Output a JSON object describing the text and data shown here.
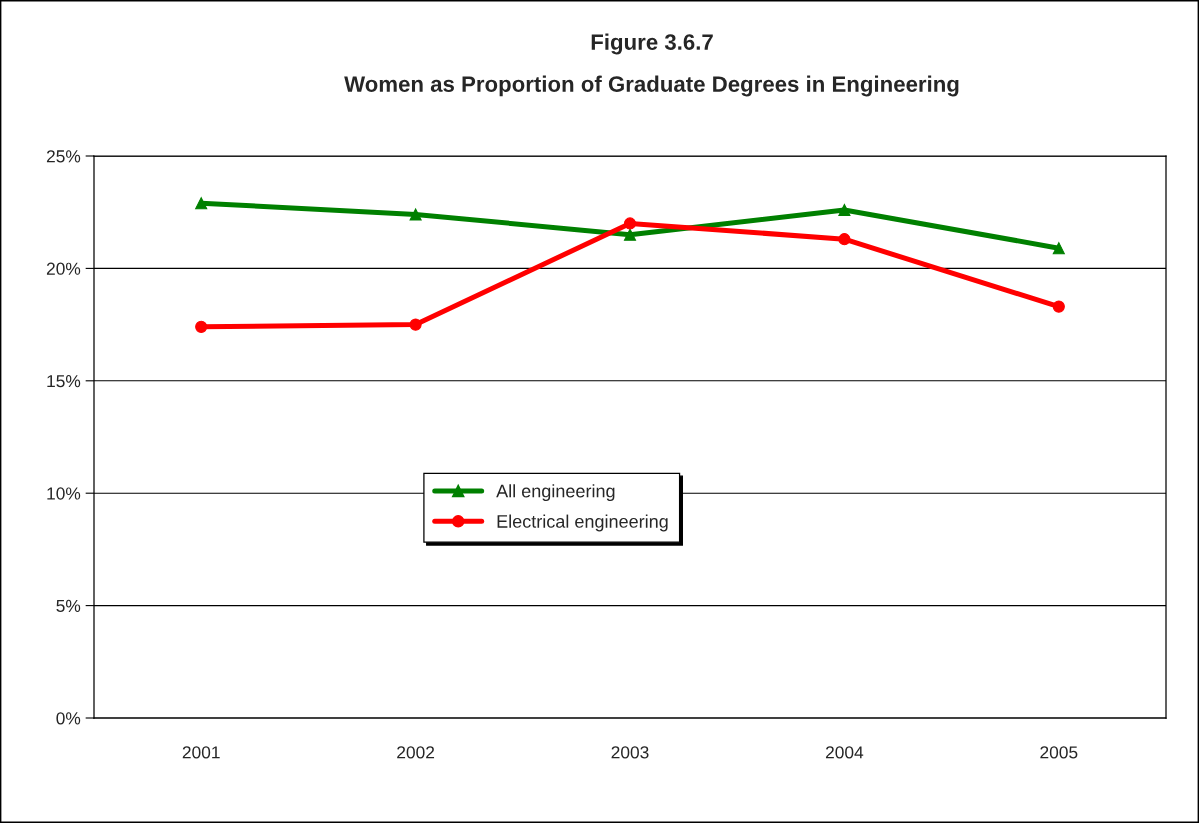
{
  "chart_data": {
    "type": "line",
    "title": "Figure 3.6.7",
    "subtitle": "Women as Proportion of Graduate Degrees in Engineering",
    "categories": [
      "2001",
      "2002",
      "2003",
      "2004",
      "2005"
    ],
    "series": [
      {
        "name": "All engineering",
        "color": "#008000",
        "marker": "triangle",
        "values": [
          22.9,
          22.4,
          21.5,
          22.6,
          20.9
        ]
      },
      {
        "name": "Electrical engineering",
        "color": "#ff0000",
        "marker": "circle",
        "values": [
          17.4,
          17.5,
          22.0,
          21.3,
          18.3
        ]
      }
    ],
    "ylim": [
      0,
      25
    ],
    "yticks": [
      {
        "value": 0,
        "label": "0%"
      },
      {
        "value": 5,
        "label": "5%"
      },
      {
        "value": 10,
        "label": "10%"
      },
      {
        "value": 15,
        "label": "15%"
      },
      {
        "value": 20,
        "label": "20%"
      },
      {
        "value": 25,
        "label": "25%"
      }
    ],
    "grid": "y",
    "legend": "center",
    "line_style": "solid"
  }
}
